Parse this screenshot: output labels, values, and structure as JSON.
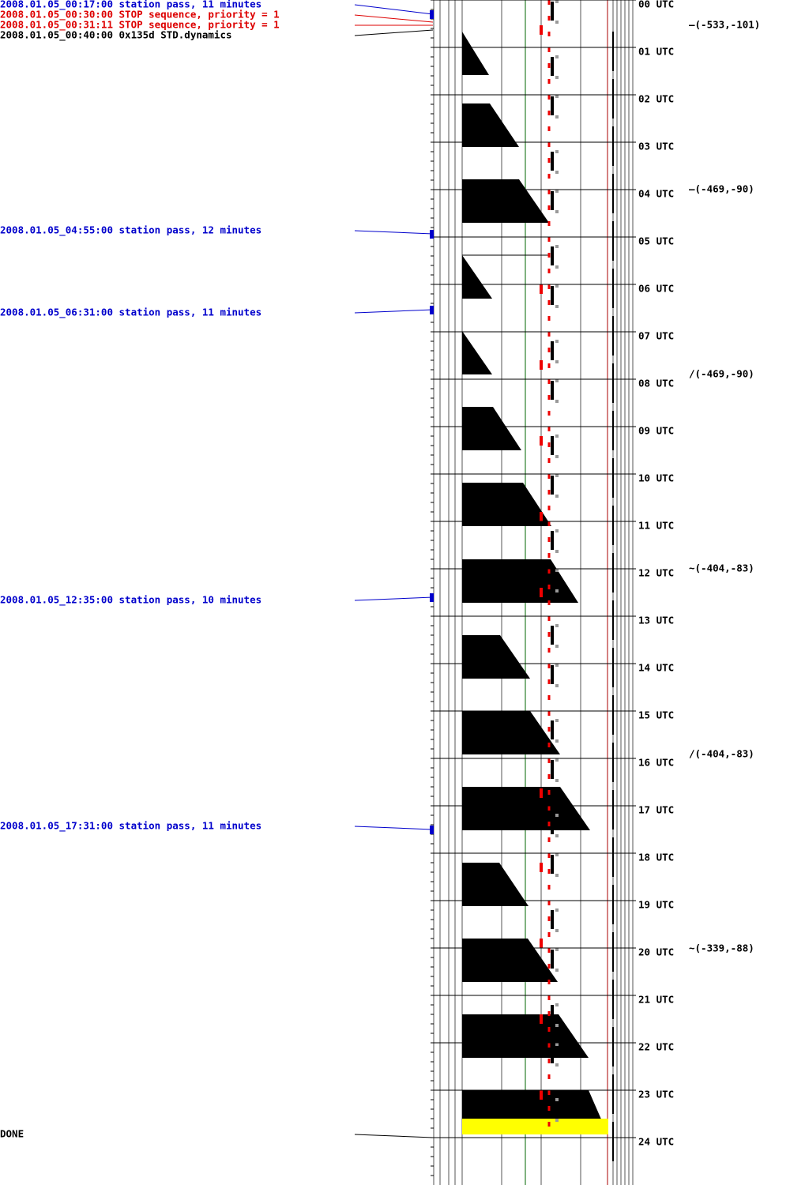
{
  "events": [
    {
      "label": "2008.01.05_00:17:00 station pass, 11 minutes",
      "color": "#0000cc"
    },
    {
      "label": "2008.01.05_00:30:00 STOP sequence, priority = 1",
      "color": "#dd0000"
    },
    {
      "label": "2008.01.05_00:31:11 STOP sequence, priority = 1",
      "color": "#dd0000"
    },
    {
      "label": "2008.01.05_00:40:00 0x135d STD.dynamics",
      "color": "#000000"
    },
    {
      "label": "2008.01.05_04:55:00 station pass, 12 minutes",
      "color": "#0000cc"
    },
    {
      "label": "2008.01.05_06:31:00 station pass, 11 minutes",
      "color": "#0000cc"
    },
    {
      "label": "2008.01.05_12:35:00 station pass, 10 minutes",
      "color": "#0000cc"
    },
    {
      "label": "2008.01.05_17:31:00 station pass, 11 minutes",
      "color": "#0000cc"
    },
    {
      "label": "DONE",
      "color": "#000000"
    }
  ],
  "hours": [
    "00 UTC",
    "01 UTC",
    "02 UTC",
    "03 UTC",
    "04 UTC",
    "05 UTC",
    "06 UTC",
    "07 UTC",
    "08 UTC",
    "09 UTC",
    "10 UTC",
    "11 UTC",
    "12 UTC",
    "13 UTC",
    "14 UTC",
    "15 UTC",
    "16 UTC",
    "17 UTC",
    "18 UTC",
    "19 UTC",
    "20 UTC",
    "21 UTC",
    "22 UTC",
    "23 UTC",
    "24 UTC"
  ],
  "annotations": [
    "—(-533,-101)",
    "—(-469,-90)",
    "∕(-469,-90)",
    "~(-404,-83)",
    "∕(-404,-83)",
    "~(-339,-88)"
  ]
}
